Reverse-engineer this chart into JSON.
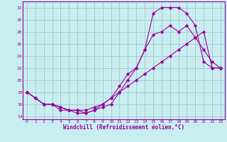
{
  "xlabel": "Windchill (Refroidissement éolien,°C)",
  "bg_color": "#c8eef0",
  "grid_color": "#a0b8cc",
  "line_color": "#990099",
  "xlim": [
    -0.5,
    23.5
  ],
  "ylim": [
    13.5,
    33.0
  ],
  "xticks": [
    0,
    1,
    2,
    3,
    4,
    5,
    6,
    7,
    8,
    9,
    10,
    11,
    12,
    13,
    14,
    15,
    16,
    17,
    18,
    19,
    20,
    21,
    22,
    23
  ],
  "yticks": [
    14,
    16,
    18,
    20,
    22,
    24,
    26,
    28,
    30,
    32
  ],
  "line1_x": [
    0,
    1,
    2,
    3,
    4,
    5,
    6,
    7,
    8,
    9,
    10,
    11,
    12,
    13,
    14,
    15,
    16,
    17,
    18,
    19,
    20,
    21,
    22,
    23
  ],
  "line1_y": [
    18,
    17,
    16,
    16,
    15.5,
    15,
    15,
    14.5,
    15,
    16,
    17,
    19,
    21,
    22,
    25,
    27.5,
    28,
    29,
    28,
    29,
    27,
    25,
    23,
    22
  ],
  "line2_x": [
    0,
    1,
    2,
    3,
    4,
    5,
    6,
    7,
    8,
    9,
    10,
    11,
    12,
    13,
    14,
    15,
    16,
    17,
    18,
    19,
    20,
    21,
    22,
    23
  ],
  "line2_y": [
    18,
    17,
    16,
    16,
    15.5,
    15,
    14.5,
    14.5,
    15,
    15.5,
    16,
    18,
    20,
    22,
    25,
    31,
    32,
    32,
    32,
    31,
    29,
    23,
    22,
    22
  ],
  "line3_x": [
    0,
    1,
    2,
    3,
    4,
    5,
    6,
    7,
    8,
    9,
    10,
    11,
    12,
    13,
    14,
    15,
    16,
    17,
    18,
    19,
    20,
    21,
    22,
    23
  ],
  "line3_y": [
    18,
    17,
    16,
    16,
    15,
    15,
    15,
    15,
    15.5,
    16,
    17,
    18,
    19,
    20,
    21,
    22,
    23,
    24,
    25,
    26,
    27,
    28,
    22,
    22
  ]
}
